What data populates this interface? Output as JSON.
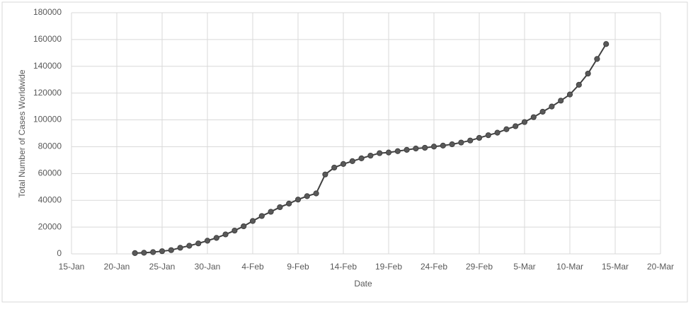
{
  "chart_data": {
    "type": "line",
    "x_label": "Date",
    "y_label": "Total Number  of Cases Worldwide",
    "x": [
      "22-Jan",
      "23-Jan",
      "24-Jan",
      "25-Jan",
      "26-Jan",
      "27-Jan",
      "28-Jan",
      "29-Jan",
      "30-Jan",
      "31-Jan",
      "1-Feb",
      "2-Feb",
      "3-Feb",
      "4-Feb",
      "5-Feb",
      "6-Feb",
      "7-Feb",
      "8-Feb",
      "9-Feb",
      "10-Feb",
      "11-Feb",
      "12-Feb",
      "13-Feb",
      "14-Feb",
      "15-Feb",
      "16-Feb",
      "17-Feb",
      "18-Feb",
      "19-Feb",
      "20-Feb",
      "21-Feb",
      "22-Feb",
      "23-Feb",
      "24-Feb",
      "25-Feb",
      "26-Feb",
      "27-Feb",
      "28-Feb",
      "29-Feb",
      "1-Mar",
      "2-Mar",
      "3-Mar",
      "4-Mar",
      "5-Mar",
      "6-Mar",
      "7-Mar",
      "8-Mar",
      "9-Mar",
      "10-Mar",
      "11-Mar",
      "12-Mar",
      "13-Mar",
      "14-Mar"
    ],
    "series": [
      {
        "color": "#404040",
        "marker_color": "#595959",
        "values": [
          580,
          845,
          1317,
          2015,
          2800,
          4581,
          6058,
          7813,
          9823,
          11950,
          14553,
          17391,
          20630,
          24545,
          28266,
          31439,
          34876,
          37552,
          40553,
          43099,
          45134,
          59287,
          64438,
          67100,
          69197,
          71329,
          73332,
          75184,
          75700,
          76677,
          77673,
          78651,
          79205,
          80087,
          80828,
          81820,
          83112,
          84615,
          86604,
          88585,
          90443,
          93016,
          95314,
          98425,
          102050,
          106099,
          109991,
          114381,
          118948,
          126214,
          134576,
          145483,
          156653
        ]
      }
    ],
    "xlim": [
      "15-Jan",
      "20-Mar"
    ],
    "xticks": [
      "15-Jan",
      "20-Jan",
      "25-Jan",
      "30-Jan",
      "4-Feb",
      "9-Feb",
      "14-Feb",
      "19-Feb",
      "24-Feb",
      "29-Feb",
      "5-Mar",
      "10-Mar",
      "15-Mar",
      "20-Mar"
    ],
    "ylim": [
      0,
      180000
    ],
    "yticks": [
      0,
      20000,
      40000,
      60000,
      80000,
      100000,
      120000,
      140000,
      160000,
      180000
    ],
    "grid": true
  }
}
